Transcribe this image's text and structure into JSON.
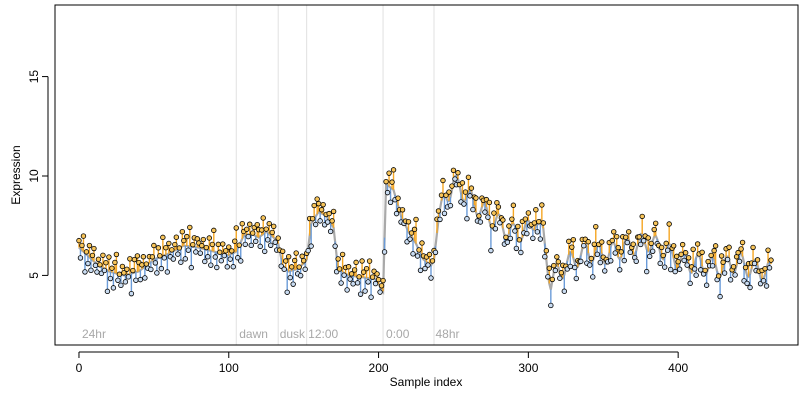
{
  "chart_data": {
    "type": "scatter",
    "title": "",
    "xlabel": "Sample index",
    "ylabel": "Expression",
    "xlim": [
      -16,
      480
    ],
    "ylim": [
      1.5,
      18.6
    ],
    "x_ticks": [
      0,
      100,
      200,
      300,
      400
    ],
    "y_ticks": [
      5,
      10,
      15
    ],
    "grid": false,
    "legend": "none",
    "colors": {
      "fit_line": "#a9a9a9",
      "residual_above": "#f5a623",
      "residual_below": "#6a9bd8",
      "boundary_line": "#e0e0e0",
      "point_outline": "#000000"
    },
    "region_boundaries": [
      105,
      133,
      152,
      203,
      237
    ],
    "region_labels": [
      {
        "text": "24hr",
        "x": 2
      },
      {
        "text": "dawn",
        "x": 107
      },
      {
        "text": "dusk",
        "x": 134
      },
      {
        "text": "12:00",
        "x": 153
      },
      {
        "text": "0:00",
        "x": 205
      },
      {
        "text": "48hr",
        "x": 238
      }
    ],
    "series_anchors": [
      [
        0,
        6.4
      ],
      [
        10,
        5.7
      ],
      [
        20,
        5.2
      ],
      [
        30,
        5.0
      ],
      [
        40,
        5.2
      ],
      [
        50,
        5.8
      ],
      [
        60,
        6.1
      ],
      [
        70,
        6.5
      ],
      [
        80,
        6.4
      ],
      [
        90,
        6.2
      ],
      [
        100,
        6.0
      ],
      [
        105,
        6.2
      ],
      [
        110,
        7.0
      ],
      [
        115,
        7.1
      ],
      [
        120,
        6.9
      ],
      [
        125,
        7.2
      ],
      [
        130,
        6.9
      ],
      [
        133,
        6.6
      ],
      [
        136,
        5.5
      ],
      [
        140,
        5.2
      ],
      [
        145,
        5.3
      ],
      [
        150,
        5.6
      ],
      [
        152,
        5.8
      ],
      [
        155,
        7.6
      ],
      [
        160,
        8.2
      ],
      [
        165,
        8.0
      ],
      [
        170,
        7.4
      ],
      [
        173,
        5.3
      ],
      [
        180,
        5.0
      ],
      [
        190,
        4.9
      ],
      [
        198,
        4.8
      ],
      [
        203,
        4.2
      ],
      [
        205,
        9.6
      ],
      [
        210,
        9.3
      ],
      [
        215,
        8.0
      ],
      [
        220,
        7.2
      ],
      [
        225,
        6.6
      ],
      [
        230,
        5.8
      ],
      [
        235,
        5.5
      ],
      [
        237,
        5.8
      ],
      [
        240,
        7.8
      ],
      [
        245,
        9.0
      ],
      [
        250,
        9.6
      ],
      [
        255,
        9.4
      ],
      [
        260,
        8.9
      ],
      [
        270,
        8.2
      ],
      [
        280,
        7.6
      ],
      [
        290,
        7.1
      ],
      [
        300,
        7.3
      ],
      [
        305,
        7.9
      ],
      [
        310,
        7.0
      ],
      [
        315,
        4.6
      ],
      [
        320,
        5.2
      ],
      [
        330,
        5.8
      ],
      [
        340,
        6.2
      ],
      [
        350,
        6.0
      ],
      [
        360,
        6.3
      ],
      [
        370,
        6.5
      ],
      [
        380,
        6.7
      ],
      [
        390,
        6.3
      ],
      [
        400,
        5.8
      ],
      [
        410,
        5.6
      ],
      [
        420,
        5.5
      ],
      [
        430,
        5.4
      ],
      [
        440,
        5.7
      ],
      [
        450,
        5.3
      ],
      [
        460,
        5.2
      ]
    ],
    "wiggle": {
      "amplitude": 0.5,
      "period": 9.5,
      "start": 240
    },
    "series_jitter": [
      0.35,
      -0.4,
      0.2,
      0.6,
      -0.7,
      0.1,
      -0.3,
      0.5,
      -0.55,
      0.25,
      0.8,
      -0.2,
      -0.65,
      0.4,
      0.05,
      -0.45,
      0.7,
      -0.1,
      0.3,
      -0.85,
      0.55,
      -0.25,
      0.15,
      -0.6,
      0.45,
      0.9,
      -0.35,
      0.0,
      -0.75,
      0.65,
      0.2,
      -0.5,
      0.35,
      -0.15,
      0.75,
      -0.9,
      0.1,
      0.5,
      -0.3,
      0.6
    ],
    "n_samples": 463
  }
}
